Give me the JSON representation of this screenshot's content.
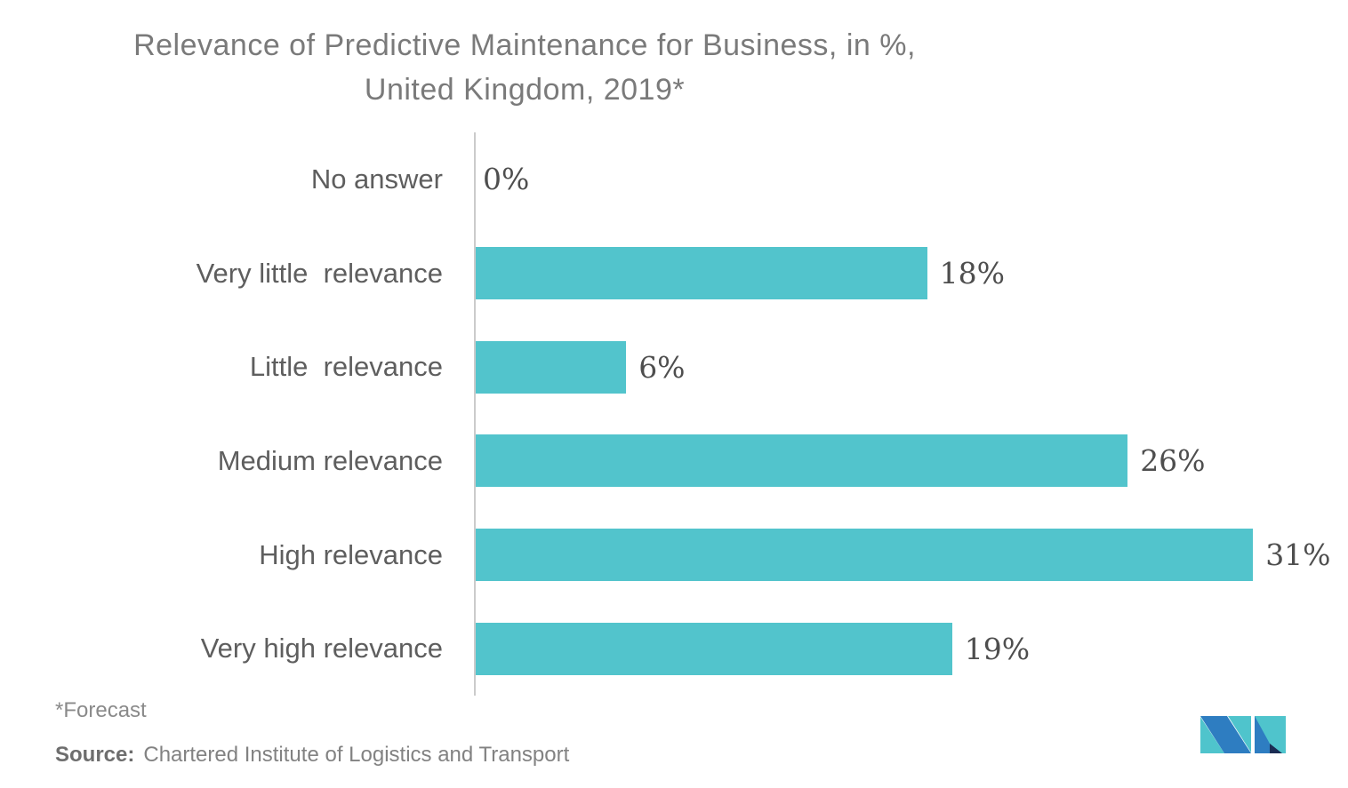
{
  "title": {
    "line1": "Relevance of Predictive Maintenance for Business, in %,",
    "line2": "United Kingdom, 2019*"
  },
  "chart_data": {
    "type": "bar",
    "orientation": "horizontal",
    "title": "Relevance of Predictive Maintenance for Business, in %, United Kingdom, 2019*",
    "categories": [
      "No answer",
      "Very little  relevance",
      "Little  relevance",
      "Medium relevance",
      "High relevance",
      "Very high relevance"
    ],
    "values": [
      0,
      18,
      6,
      26,
      31,
      19
    ],
    "value_labels": [
      "0%",
      "18%",
      "6%",
      "26%",
      "31%",
      "19%"
    ],
    "xlabel": "",
    "ylabel": "",
    "xlim": [
      0,
      31
    ],
    "grid": false,
    "legend": false,
    "bar_color": "#52c4cc"
  },
  "footer": {
    "forecast_note": "*Forecast",
    "source_label": "Source:",
    "source_text": "Chartered Institute of Logistics and Transport"
  },
  "colors": {
    "bar": "#52c4cc",
    "axis": "#cbcbcb",
    "title_text": "#7a7a7a",
    "category_text": "#5e5e5e",
    "value_text": "#4e4e4e",
    "footer_text": "#8a8a8a"
  },
  "logo": {
    "name": "mordor-intelligence-logo",
    "teal": "#4fc4cc",
    "blue": "#2e7dc1",
    "navy": "#1a2c53"
  }
}
